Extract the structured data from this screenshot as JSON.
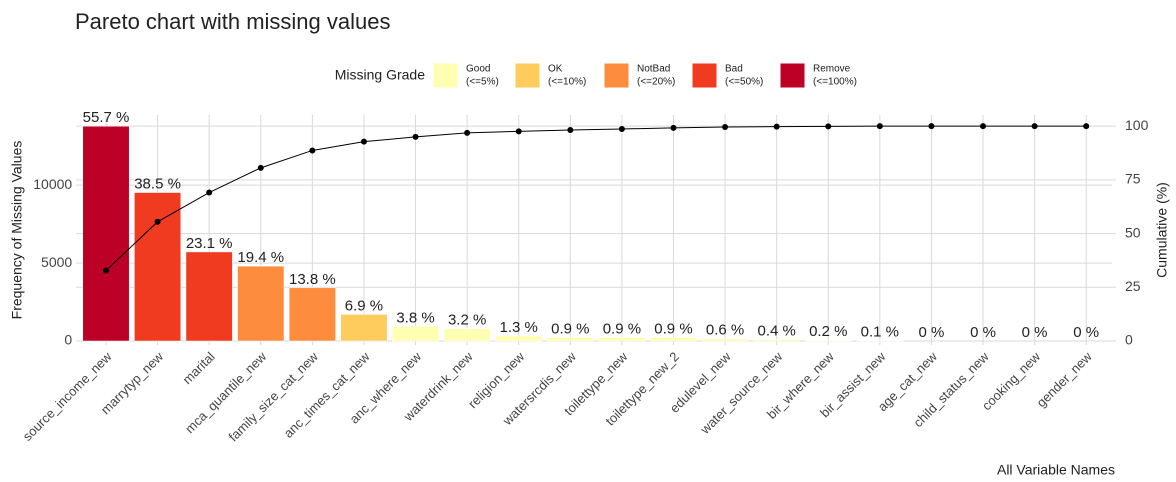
{
  "chart_data": {
    "type": "pareto",
    "title": "Pareto chart with missing values",
    "y_label": "Frequency of Missing Values",
    "y2_label": "Cumulative (%)",
    "x_label": "All Variable Names",
    "categories": [
      "source_income_new",
      "marrytyp_new",
      "marital",
      "mca_quantile_new",
      "family_size_cat_new",
      "anc_times_cat_new",
      "anc_where_new",
      "waterdrink_new",
      "religion_new",
      "watersrcdis_new",
      "toilettype_new",
      "toilettype_new_2",
      "edulevel_new",
      "water_source_new",
      "bir_where_new",
      "bir_assist_new",
      "age_cat_new",
      "child_status_new",
      "cooking_new",
      "gender_new"
    ],
    "series": [
      {
        "name": "Frequency of Missing Values",
        "type": "bar",
        "values": [
          13780,
          9525,
          5715,
          4800,
          3414,
          1707,
          940,
          792,
          322,
          223,
          223,
          223,
          148,
          99,
          49,
          25,
          0,
          0,
          0,
          0
        ],
        "colors": [
          "#bd0026",
          "#f03b20",
          "#f03b20",
          "#fd8d3c",
          "#fd8d3c",
          "#fecc5c",
          "#ffffb2",
          "#ffffb2",
          "#ffffb2",
          "#ffffb2",
          "#ffffb2",
          "#ffffb2",
          "#ffffb2",
          "#ffffb2",
          "#ffffb2",
          "#ffffb2",
          "#ffffb2",
          "#ffffb2",
          "#ffffb2",
          "#ffffb2"
        ],
        "bar_labels": [
          "55.7 %",
          "38.5 %",
          "23.1 %",
          "19.4 %",
          "13.8 %",
          "6.9 %",
          "3.8 %",
          "3.2 %",
          "1.3 %",
          "0.9 %",
          "0.9 %",
          "0.9 %",
          "0.6 %",
          "0.4 %",
          "0.2 %",
          "0.1 %",
          "0 %",
          "0 %",
          "0 %",
          "0 %"
        ]
      },
      {
        "name": "Cumulative (%)",
        "type": "line",
        "axis": "y2",
        "color": "#000000",
        "values": [
          32.8,
          55.5,
          69.1,
          80.6,
          88.7,
          92.8,
          95.0,
          96.9,
          97.6,
          98.2,
          98.7,
          99.2,
          99.6,
          99.8,
          99.9,
          100,
          100,
          100,
          100,
          100
        ]
      }
    ],
    "legend": {
      "title": "Missing Grade",
      "items": [
        {
          "name": "Good",
          "range": "(<=5%)",
          "color": "#ffffb2"
        },
        {
          "name": "OK",
          "range": "(<=10%)",
          "color": "#fecc5c"
        },
        {
          "name": "NotBad",
          "range": "(<=20%)",
          "color": "#fd8d3c"
        },
        {
          "name": "Bad",
          "range": "(<=50%)",
          "color": "#f03b20"
        },
        {
          "name": "Remove",
          "range": "(<=100%)",
          "color": "#bd0026"
        }
      ]
    },
    "ylim": [
      0,
      14500
    ],
    "yticks": [
      0,
      5000,
      10000
    ],
    "y2lim": [
      0,
      105.2
    ],
    "y2ticks": [
      0,
      25,
      50,
      75,
      100
    ],
    "grid": true
  }
}
